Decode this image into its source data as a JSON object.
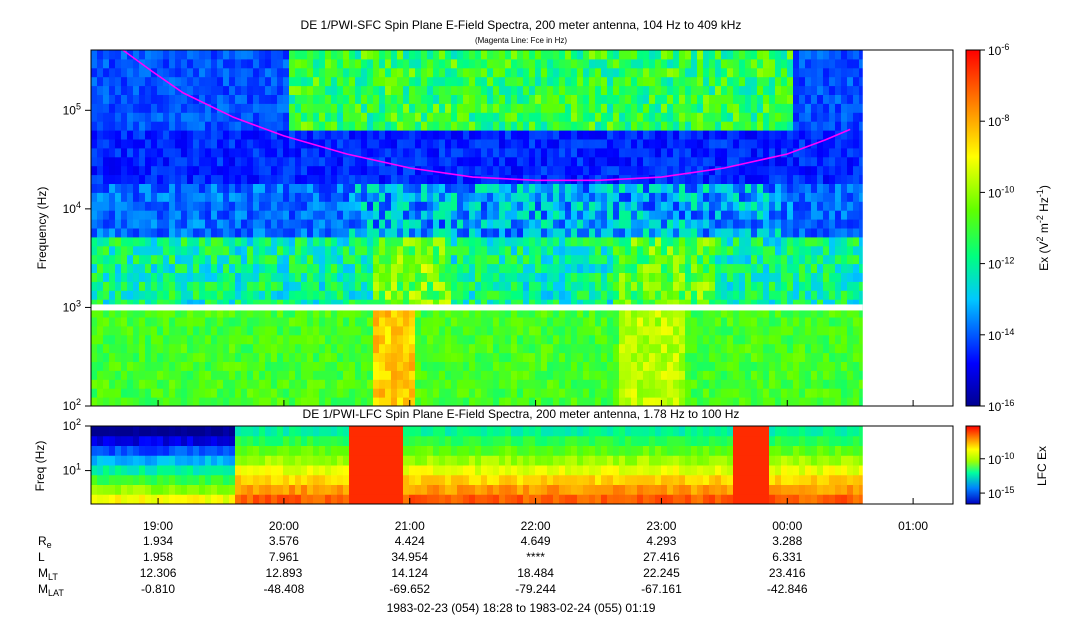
{
  "chart_data": [
    {
      "type": "heatmap",
      "title": "DE 1/PWI-SFC  Spin Plane E-Field Spectra, 200 meter antenna, 104 Hz to 409 kHz",
      "subtitle": "(Magenta Line: Fce in Hz)",
      "ylabel": "Frequency (Hz)",
      "yscale": "log",
      "ylim": [
        100,
        409000
      ],
      "y_ticks": [
        {
          "value": 100,
          "base": "10",
          "exp": "2"
        },
        {
          "value": 1000,
          "base": "10",
          "exp": "3"
        },
        {
          "value": 10000,
          "base": "10",
          "exp": "4"
        },
        {
          "value": 100000,
          "base": "10",
          "exp": "5"
        }
      ],
      "colorbar": {
        "label_parts": [
          "Ex (V",
          "2",
          " m",
          "-2",
          " Hz",
          "-1",
          ")"
        ],
        "scale": "log",
        "range": [
          1e-16,
          1e-06
        ],
        "ticks": [
          {
            "value": 1e-06,
            "base": "10",
            "exp": "-6"
          },
          {
            "value": 1e-08,
            "base": "10",
            "exp": "-8"
          },
          {
            "value": 1e-10,
            "base": "10",
            "exp": "-10"
          },
          {
            "value": 1e-12,
            "base": "10",
            "exp": "-12"
          },
          {
            "value": 1e-14,
            "base": "10",
            "exp": "-14"
          },
          {
            "value": 1e-16,
            "base": "10",
            "exp": "-16"
          }
        ]
      },
      "fce_line": {
        "color": "#ff00ff",
        "points_hours_hz": [
          [
            18.72,
            409000
          ],
          [
            18.95,
            250000
          ],
          [
            19.2,
            150000
          ],
          [
            19.6,
            85000
          ],
          [
            20.0,
            55000
          ],
          [
            20.5,
            36000
          ],
          [
            21.0,
            26000
          ],
          [
            21.5,
            21000
          ],
          [
            22.0,
            19500
          ],
          [
            22.5,
            19500
          ],
          [
            23.0,
            21000
          ],
          [
            23.5,
            26000
          ],
          [
            24.0,
            36000
          ],
          [
            24.3,
            50000
          ],
          [
            24.5,
            64000
          ]
        ]
      }
    },
    {
      "type": "heatmap",
      "title": "DE 1/PWI-LFC  Spin Plane E-Field Spectra, 200 meter antenna, 1.78 Hz to 100 Hz",
      "ylabel": "Freq (Hz)",
      "yscale": "log",
      "ylim": [
        1.78,
        100
      ],
      "y_ticks": [
        {
          "value": 10,
          "base": "10",
          "exp": "1"
        },
        {
          "value": 100,
          "base": "10",
          "exp": "2"
        }
      ],
      "colorbar": {
        "label": "LFC Ex",
        "scale": "log",
        "ticks": [
          {
            "value": 1e-10,
            "base": "10",
            "exp": "-10"
          },
          {
            "value": 1e-15,
            "base": "10",
            "exp": "-15"
          }
        ]
      }
    }
  ],
  "x_axis": {
    "range_hours": [
      18.467,
      25.317
    ],
    "data_end_hours": 24.6,
    "ticks": [
      {
        "hour": 19,
        "label": "19:00",
        "Re": "1.934",
        "L": "1.958",
        "MLT": "12.306",
        "MLAT": "-0.810"
      },
      {
        "hour": 20,
        "label": "20:00",
        "Re": "3.576",
        "L": "7.961",
        "MLT": "12.893",
        "MLAT": "-48.408"
      },
      {
        "hour": 21,
        "label": "21:00",
        "Re": "4.424",
        "L": "34.954",
        "MLT": "14.124",
        "MLAT": "-69.652"
      },
      {
        "hour": 22,
        "label": "22:00",
        "Re": "4.649",
        "L": "****",
        "MLT": "18.484",
        "MLAT": "-79.244"
      },
      {
        "hour": 23,
        "label": "23:00",
        "Re": "4.293",
        "L": "27.416",
        "MLT": "22.245",
        "MLAT": "-67.161"
      },
      {
        "hour": 24,
        "label": "00:00",
        "Re": "3.288",
        "L": "6.331",
        "MLT": "23.416",
        "MLAT": "-42.846"
      },
      {
        "hour": 25,
        "label": "01:00",
        "Re": "",
        "L": "",
        "MLT": "",
        "MLAT": ""
      }
    ],
    "row_labels": [
      {
        "key": "Re",
        "base": "R",
        "sub": "e"
      },
      {
        "key": "L",
        "base": "L",
        "sub": ""
      },
      {
        "key": "MLT",
        "base": "M",
        "sub": "LT"
      },
      {
        "key": "MLAT",
        "base": "M",
        "sub": "LAT"
      }
    ],
    "time_range_text": "1983-02-23 (054) 18:28 to 1983-02-24 (055) 01:19"
  }
}
